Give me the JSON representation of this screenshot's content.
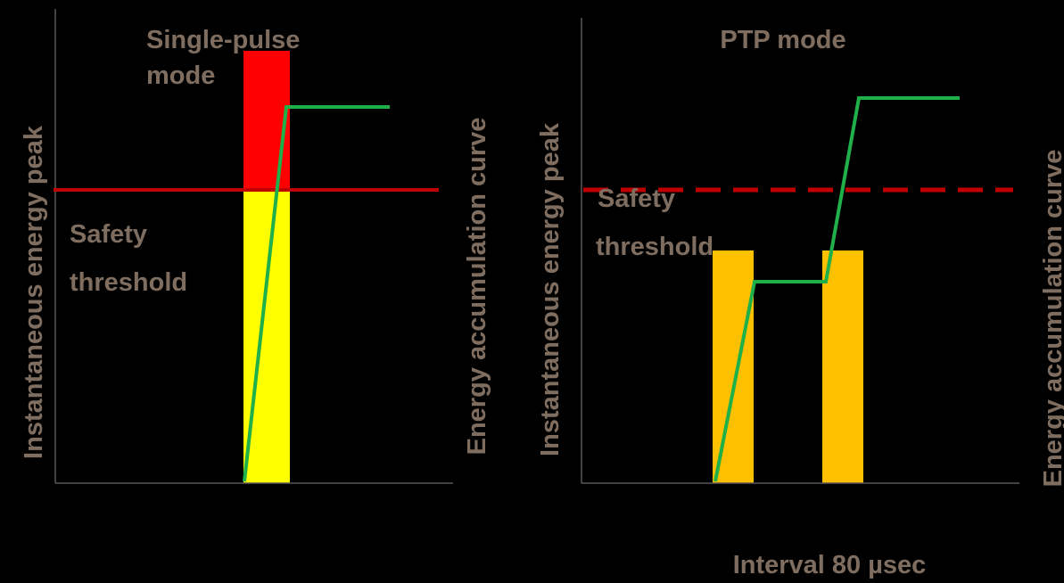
{
  "colors": {
    "background": "#000000",
    "axis": "#595959",
    "label_text": "#7F6E60",
    "curve": "#1FB04A",
    "threshold": "#C00000",
    "peak_over": "#FF0000",
    "peak_under": "#FFFF00",
    "pulse": "#FFC000"
  },
  "left_panel": {
    "title_line1": "Single-pulse",
    "title_line2": "mode",
    "left_axis_label": "Instantaneous energy peak",
    "right_axis_label": "Energy accumulation curve",
    "threshold_line1": "Safety",
    "threshold_line2": "threshold",
    "threshold_style": "solid"
  },
  "right_panel": {
    "title": "PTP mode",
    "left_axis_label": "Instantaneous energy peak",
    "right_axis_label": "Energy accumulation curve",
    "threshold_line1": "Safety",
    "threshold_line2": "threshold",
    "threshold_style": "dashed",
    "interval_caption": "Interval 80 µsec"
  }
}
